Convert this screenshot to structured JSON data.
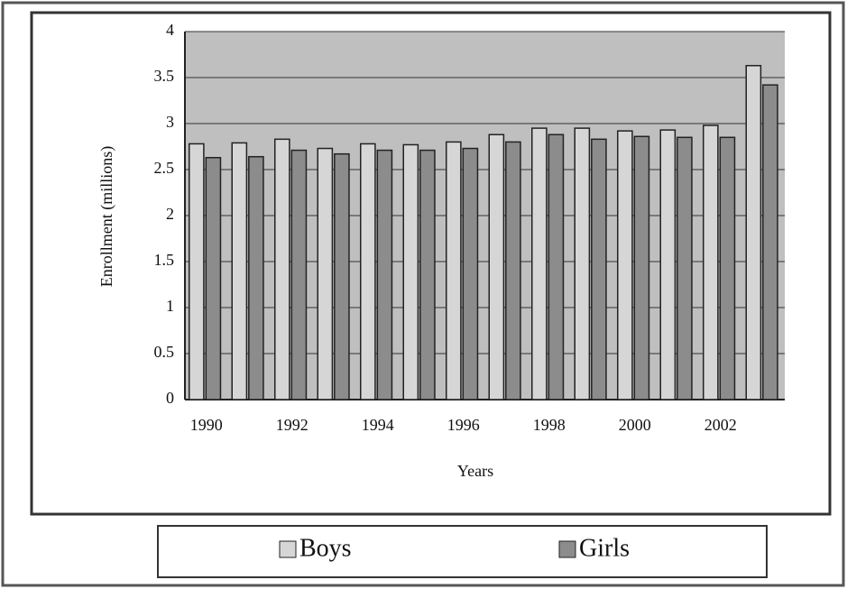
{
  "chart_data": {
    "type": "bar",
    "y_label": "Enrollment (millions)",
    "x_label": "Years",
    "categories": [
      "1990",
      null,
      "1992",
      null,
      "1994",
      null,
      "1996",
      null,
      "1998",
      null,
      "2000",
      null,
      "2002",
      null
    ],
    "series": [
      {
        "name": "Boys",
        "color": "#d6d6d6",
        "values": [
          2.78,
          2.79,
          2.83,
          2.73,
          2.78,
          2.77,
          2.8,
          2.88,
          2.95,
          2.95,
          2.92,
          2.93,
          2.98,
          3.63
        ]
      },
      {
        "name": "Girls",
        "color": "#8c8c8c",
        "values": [
          2.63,
          2.64,
          2.71,
          2.67,
          2.71,
          2.71,
          2.73,
          2.8,
          2.88,
          2.83,
          2.86,
          2.85,
          2.85,
          3.42
        ]
      }
    ],
    "ylim": [
      0,
      4
    ],
    "yticks": [
      0,
      0.5,
      1,
      1.5,
      2,
      2.5,
      3,
      3.5,
      4
    ],
    "grid": true
  }
}
